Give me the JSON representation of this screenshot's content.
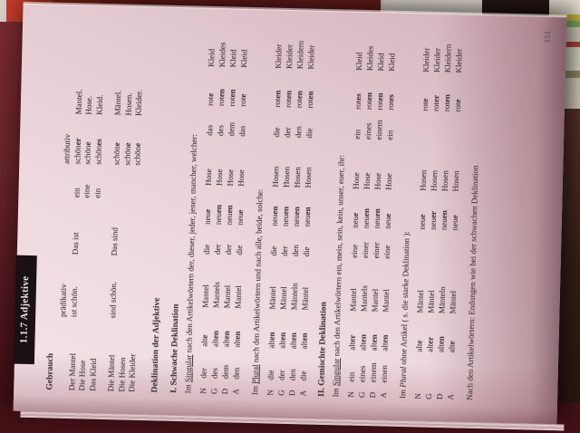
{
  "page_number": "151",
  "tab_label": "1.1.7 Adjektive",
  "colors": {
    "paper": "#eed9de",
    "cover": "#4f191e",
    "tab": "#1a1115",
    "text": "#463945"
  },
  "gebrauch": {
    "heading": "Gebrauch",
    "praedikativ_label": "prädikativ",
    "attributiv_label": "attributiv",
    "groups": [
      {
        "subjects": [
          "Der Mantel",
          "Die Hose",
          "Das Kleid"
        ],
        "predicate": "ist schön.",
        "demo": "Das ist",
        "rows": [
          {
            "article": "ein",
            "adj_stem": "schön",
            "adj_ending": "er",
            "noun": "Mantel."
          },
          {
            "article": "eine",
            "adj_stem": "schön",
            "adj_ending": "e",
            "noun": "Hose."
          },
          {
            "article": "ein",
            "adj_stem": "schön",
            "adj_ending": "es",
            "noun": "Kleid."
          }
        ]
      },
      {
        "subjects": [
          "Die Mäntel",
          "Die Hosen",
          "Die Kleider"
        ],
        "predicate": "sind schön.",
        "demo": "Das sind",
        "rows": [
          {
            "article": "",
            "adj_stem": "schön",
            "adj_ending": "e",
            "noun": "Mäntel."
          },
          {
            "article": "",
            "adj_stem": "schön",
            "adj_ending": "e",
            "noun": "Hosen."
          },
          {
            "article": "",
            "adj_stem": "schön",
            "adj_ending": "e",
            "noun": "Kleider."
          }
        ]
      }
    ]
  },
  "deklination_heading": "Deklination der Adjektive",
  "sections": [
    {
      "title": "I.  Schwache Deklination",
      "tables": [
        {
          "intro_pre": "Im ",
          "intro_key": "Singular",
          "intro_key_style": "underline",
          "intro_post": " nach den Artikelwörtern der, dieser, jeder, jener, mancher, welcher:",
          "cases": [
            "N",
            "G",
            "D",
            "A"
          ],
          "rows": [
            [
              {
                "art": "der",
                "stem": "alt",
                "end": "e",
                "noun": "Mantel"
              },
              {
                "art": "die",
                "stem": "neu",
                "end": "e",
                "noun": "Hose"
              },
              {
                "art": "das",
                "stem": "rot",
                "end": "e",
                "noun": "Kleid"
              }
            ],
            [
              {
                "art": "des",
                "stem": "alt",
                "end": "en",
                "noun": "Mantels"
              },
              {
                "art": "der",
                "stem": "neu",
                "end": "en",
                "noun": "Hose"
              },
              {
                "art": "des",
                "stem": "rot",
                "end": "en",
                "noun": "Kleides"
              }
            ],
            [
              {
                "art": "dem",
                "stem": "alt",
                "end": "en",
                "noun": "Mantel"
              },
              {
                "art": "der",
                "stem": "neu",
                "end": "en",
                "noun": "Hose"
              },
              {
                "art": "dem",
                "stem": "rot",
                "end": "en",
                "noun": "Kleid"
              }
            ],
            [
              {
                "art": "den",
                "stem": "alt",
                "end": "en",
                "noun": "Mantel"
              },
              {
                "art": "die",
                "stem": "neu",
                "end": "e",
                "noun": "Hose"
              },
              {
                "art": "das",
                "stem": "rot",
                "end": "e",
                "noun": "Kleid"
              }
            ]
          ]
        },
        {
          "intro_pre": "Im ",
          "intro_key": "Plural",
          "intro_key_style": "underline",
          "intro_post": " nach den Artikelwörtern und nach alle, beide, solche:",
          "cases": [
            "N",
            "G",
            "D",
            "A"
          ],
          "rows": [
            [
              {
                "art": "die",
                "stem": "alt",
                "end": "en",
                "noun": "Mäntel"
              },
              {
                "art": "die",
                "stem": "neu",
                "end": "en",
                "noun": "Hosen"
              },
              {
                "art": "die",
                "stem": "rot",
                "end": "en",
                "noun": "Kleider"
              }
            ],
            [
              {
                "art": "der",
                "stem": "alt",
                "end": "en",
                "noun": "Mäntel"
              },
              {
                "art": "der",
                "stem": "neu",
                "end": "en",
                "noun": "Hosen"
              },
              {
                "art": "der",
                "stem": "rot",
                "end": "en",
                "noun": "Kleider"
              }
            ],
            [
              {
                "art": "den",
                "stem": "alt",
                "end": "en",
                "noun": "Mänteln"
              },
              {
                "art": "den",
                "stem": "neu",
                "end": "en",
                "noun": "Hosen"
              },
              {
                "art": "den",
                "stem": "rot",
                "end": "en",
                "noun": "Kleidern"
              }
            ],
            [
              {
                "art": "die",
                "stem": "alt",
                "end": "en",
                "noun": "Mäntel"
              },
              {
                "art": "die",
                "stem": "neu",
                "end": "en",
                "noun": "Hosen"
              },
              {
                "art": "die",
                "stem": "rot",
                "end": "en",
                "noun": "Kleider"
              }
            ]
          ]
        }
      ]
    },
    {
      "title": "II.  Gemischte Deklination",
      "tables": [
        {
          "intro_pre": "Im ",
          "intro_key": "Singular",
          "intro_key_style": "underline",
          "intro_post": " nach den Artikelwörtern ein, mein, sein, kein, unser, euer, ihr:",
          "cases": [
            "N",
            "G",
            "D",
            "A"
          ],
          "rows": [
            [
              {
                "art": "ein",
                "stem": "alt",
                "end": "er",
                "noun": "Mantel"
              },
              {
                "art": "eine",
                "stem": "neu",
                "end": "e",
                "noun": "Hose"
              },
              {
                "art": "ein",
                "stem": "rot",
                "end": "es",
                "noun": "Kleid"
              }
            ],
            [
              {
                "art": "eines",
                "stem": "alt",
                "end": "en",
                "noun": "Mantels"
              },
              {
                "art": "einer",
                "stem": "neu",
                "end": "en",
                "noun": "Hose"
              },
              {
                "art": "eines",
                "stem": "rot",
                "end": "en",
                "noun": "Kleides"
              }
            ],
            [
              {
                "art": "einem",
                "stem": "alt",
                "end": "en",
                "noun": "Mantel"
              },
              {
                "art": "einer",
                "stem": "neu",
                "end": "en",
                "noun": "Hose"
              },
              {
                "art": "einem",
                "stem": "rot",
                "end": "en",
                "noun": "Kleid"
              }
            ],
            [
              {
                "art": "einen",
                "stem": "alt",
                "end": "en",
                "noun": "Mantel"
              },
              {
                "art": "eine",
                "stem": "neu",
                "end": "e",
                "noun": "Hose"
              },
              {
                "art": "ein",
                "stem": "rot",
                "end": "es",
                "noun": "Kleid"
              }
            ]
          ]
        },
        {
          "intro_pre": "Im ",
          "intro_key": "Plural",
          "intro_key_style": "italic",
          "intro_post": " ohne Artikel ( s. die starke Deklination ):",
          "cases": [
            "N",
            "G",
            "D",
            "A"
          ],
          "rows": [
            [
              {
                "art": "",
                "stem": "alt",
                "end": "e",
                "noun": "Mäntel"
              },
              {
                "art": "",
                "stem": "neu",
                "end": "e",
                "noun": "Hosen"
              },
              {
                "art": "",
                "stem": "rot",
                "end": "e",
                "noun": "Kleider"
              }
            ],
            [
              {
                "art": "",
                "stem": "alt",
                "end": "er",
                "noun": "Mäntel"
              },
              {
                "art": "",
                "stem": "neu",
                "end": "er",
                "noun": "Hosen"
              },
              {
                "art": "",
                "stem": "rot",
                "end": "er",
                "noun": "Kleider"
              }
            ],
            [
              {
                "art": "",
                "stem": "alt",
                "end": "en",
                "noun": "Mänteln"
              },
              {
                "art": "",
                "stem": "neu",
                "end": "en",
                "noun": "Hosen"
              },
              {
                "art": "",
                "stem": "rot",
                "end": "en",
                "noun": "Kleidern"
              }
            ],
            [
              {
                "art": "",
                "stem": "alt",
                "end": "e",
                "noun": "Mäntel"
              },
              {
                "art": "",
                "stem": "neu",
                "end": "e",
                "noun": "Hosen"
              },
              {
                "art": "",
                "stem": "rot",
                "end": "e",
                "noun": "Kleider"
              }
            ]
          ]
        }
      ]
    }
  ],
  "footer_note": "Nach den Artikelwörtern: Endungen wie bei der schwachen Deklination"
}
